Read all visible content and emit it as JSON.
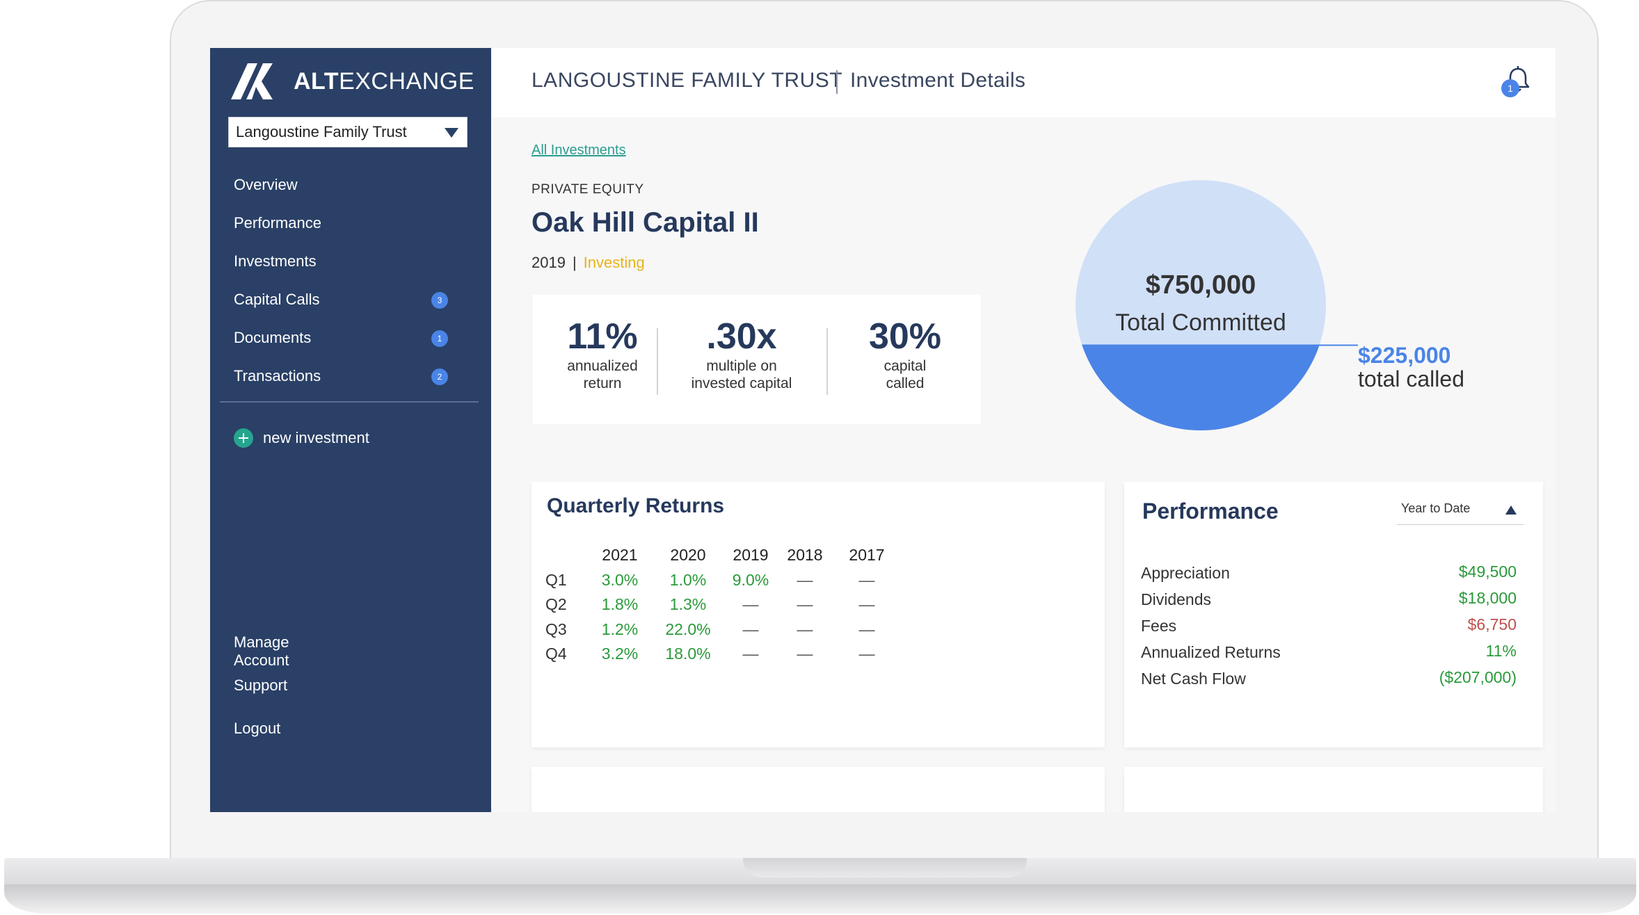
{
  "app": {
    "logo_bold": "ALT",
    "logo_light": "EXCHANGE"
  },
  "sidebar": {
    "trust_select": "Langoustine Family Trust",
    "items": [
      {
        "label": "Overview",
        "badge": null
      },
      {
        "label": "Performance",
        "badge": null
      },
      {
        "label": "Investments",
        "badge": null
      },
      {
        "label": "Capital Calls",
        "badge": "3"
      },
      {
        "label": "Documents",
        "badge": "1"
      },
      {
        "label": "Transactions",
        "badge": "2"
      }
    ],
    "new_investment": "new investment",
    "bottom_items": [
      {
        "label": "Manage Account"
      },
      {
        "label": "Support"
      },
      {
        "label": "Logout"
      }
    ]
  },
  "header": {
    "trust": "LANGOUSTINE FAMILY TRUST",
    "page": "Investment Details",
    "notifications": "1"
  },
  "investment": {
    "back_link": "All Investments",
    "type": "PRIVATE EQUITY",
    "name": "Oak Hill Capital II",
    "year": "2019",
    "separator": "|",
    "status": "Investing",
    "stats": [
      {
        "value": "11%",
        "label_line1": "annualized",
        "label_line2": "return"
      },
      {
        "value": ".30x",
        "label_line1": "multiple on",
        "label_line2": "invested capital"
      },
      {
        "value": "30%",
        "label_line1": "capital",
        "label_line2": "called"
      }
    ],
    "committed_value": "$750,000",
    "committed_label": "Total Committed",
    "called_value": "$225,000",
    "called_label": "total called",
    "called_fraction": 0.3
  },
  "quarterly_returns": {
    "title": "Quarterly Returns",
    "years": [
      "2021",
      "2020",
      "2019",
      "2018",
      "2017"
    ],
    "rows": [
      {
        "label": "Q1",
        "values": [
          "3.0%",
          "1.0%",
          "9.0%",
          "—",
          "—"
        ]
      },
      {
        "label": "Q2",
        "values": [
          "1.8%",
          "1.3%",
          "—",
          "—",
          "—"
        ]
      },
      {
        "label": "Q3",
        "values": [
          "1.2%",
          "22.0%",
          "—",
          "—",
          "—"
        ]
      },
      {
        "label": "Q4",
        "values": [
          "3.2%",
          "18.0%",
          "—",
          "—",
          "—"
        ]
      }
    ]
  },
  "performance": {
    "title": "Performance",
    "period": "Year to Date",
    "rows": [
      {
        "label": "Appreciation",
        "value": "$49,500",
        "tone": "pos"
      },
      {
        "label": "Dividends",
        "value": "$18,000",
        "tone": "pos"
      },
      {
        "label": "Fees",
        "value": "$6,750",
        "tone": "neg"
      },
      {
        "label": "Annualized Returns",
        "value": "11%",
        "tone": "pos"
      },
      {
        "label": "Net Cash Flow",
        "value": "($207,000)",
        "tone": "pos"
      }
    ]
  },
  "colors": {
    "sidebar": "#2a4066",
    "accent_blue": "#4a84e6",
    "light_blue": "#d0e0f7",
    "positive": "#2a9a3a",
    "negative": "#c0504d",
    "status_yellow": "#e8b31a",
    "link_teal": "#2a9d8f"
  }
}
